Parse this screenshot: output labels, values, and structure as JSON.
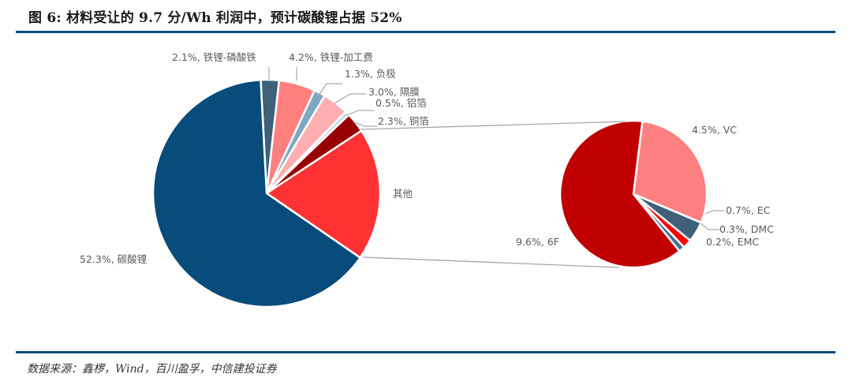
{
  "header": {
    "title": "图 6: 材料受让的 9.7 分/Wh 利润中，预计碳酸锂占据 52%"
  },
  "footer": {
    "source": "数据来源：鑫椤，Wind，百川盈孚，中信建投证券"
  },
  "colors": {
    "rule": "#0b4d7c",
    "carbonate": "#074c7a",
    "lfp": "#3e6179",
    "processing": "#ff7f7f",
    "anode": "#7da7c2",
    "separator": "#ffafaf",
    "al_foil": "#c3d6e6",
    "cu_foil": "#990000",
    "others": "#ff3333",
    "lipf6": "#c00000",
    "vc": "#ff8080",
    "ec": "#3e6179",
    "dmc": "#ff0000",
    "emc": "#3e6f94"
  },
  "chart_data": {
    "type": "pie",
    "subtype": "pie-of-pie",
    "title": "材料受让的 9.7 分/Wh 利润中，预计碳酸锂占据 52%",
    "primary": {
      "labels": [
        "铁锂-磷酸铁",
        "铁锂-加工费",
        "负极",
        "隔膜",
        "铝箔",
        "铜箔",
        "其他",
        "碳酸锂"
      ],
      "values": [
        2.1,
        4.2,
        1.3,
        3.0,
        0.5,
        2.3,
        15.3,
        52.3
      ],
      "label_text": [
        "2.1%, 铁锂-磷酸铁",
        "4.2%, 铁锂-加工费",
        "1.3%, 负极",
        "3.0%, 隔膜",
        "0.5%, 铝箔",
        "2.3%, 铜箔",
        "其他",
        "52.3%, 碳酸锂"
      ]
    },
    "secondary": {
      "parent": "其他",
      "labels": [
        "VC",
        "EC",
        "DMC",
        "EMC",
        "6F"
      ],
      "values": [
        4.5,
        0.7,
        0.3,
        0.2,
        9.6
      ],
      "label_text": [
        "4.5%, VC",
        "0.7%, EC",
        "0.3%, DMC",
        "0.2%, EMC",
        "9.6%, 6F"
      ]
    },
    "unit": "%",
    "legend": "none (data labels)"
  }
}
